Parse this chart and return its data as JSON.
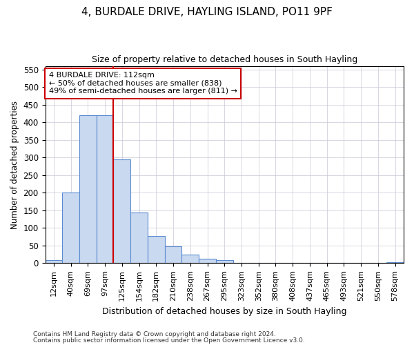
{
  "title": "4, BURDALE DRIVE, HAYLING ISLAND, PO11 9PF",
  "subtitle": "Size of property relative to detached houses in South Hayling",
  "xlabel": "Distribution of detached houses by size in South Hayling",
  "ylabel": "Number of detached properties",
  "footnote1": "Contains HM Land Registry data © Crown copyright and database right 2024.",
  "footnote2": "Contains public sector information licensed under the Open Government Licence v3.0.",
  "categories": [
    "12sqm",
    "40sqm",
    "69sqm",
    "97sqm",
    "125sqm",
    "154sqm",
    "182sqm",
    "210sqm",
    "238sqm",
    "267sqm",
    "295sqm",
    "323sqm",
    "352sqm",
    "380sqm",
    "408sqm",
    "437sqm",
    "465sqm",
    "493sqm",
    "521sqm",
    "550sqm",
    "578sqm"
  ],
  "values": [
    8,
    200,
    420,
    420,
    295,
    143,
    78,
    48,
    25,
    13,
    8,
    0,
    0,
    0,
    0,
    0,
    0,
    0,
    0,
    0,
    3
  ],
  "bar_color": "#c9d9f0",
  "bar_edge_color": "#5b8bd0",
  "red_line_index": 4,
  "annotation_line1": "4 BURDALE DRIVE: 112sqm",
  "annotation_line2": "← 50% of detached houses are smaller (838)",
  "annotation_line3": "49% of semi-detached houses are larger (811) →",
  "annotation_box_edge": "#cc0000",
  "ylim": [
    0,
    560
  ],
  "yticks": [
    0,
    50,
    100,
    150,
    200,
    250,
    300,
    350,
    400,
    450,
    500,
    550
  ],
  "background_color": "#ffffff",
  "grid_color": "#c8c8d8"
}
